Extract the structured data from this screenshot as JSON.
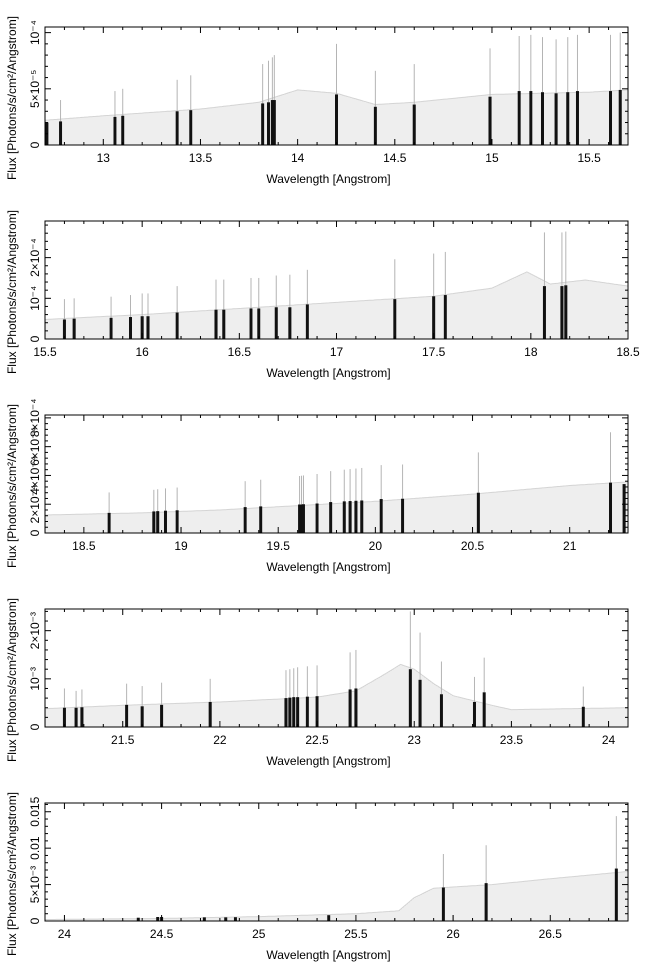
{
  "chart_data": [
    {
      "type": "bar",
      "xlabel": "Wavelength [Angstrom]",
      "ylabel": "Flux [Photons/s/cm²/Angstrom]",
      "xlim": [
        12.7,
        15.7
      ],
      "ylim": [
        0,
        0.000105
      ],
      "xticks": [
        {
          "value": 13,
          "label": "13"
        },
        {
          "value": 13.5,
          "label": "13.5"
        },
        {
          "value": 14,
          "label": "14"
        },
        {
          "value": 14.5,
          "label": "14.5"
        },
        {
          "value": 15,
          "label": "15"
        },
        {
          "value": 15.5,
          "label": "15.5"
        }
      ],
      "yticks": [
        {
          "value": 0,
          "label": "0"
        },
        {
          "value": 5e-05,
          "label": "5×10⁻⁵"
        },
        {
          "value": 0.0001,
          "label": "10⁻⁴"
        }
      ],
      "model_curve": [
        [
          12.7,
          2.2e-05
        ],
        [
          13.0,
          2.6e-05
        ],
        [
          13.5,
          3.2e-05
        ],
        [
          13.8,
          3.8e-05
        ],
        [
          14.0,
          4.9e-05
        ],
        [
          14.2,
          4.6e-05
        ],
        [
          14.4,
          3.6e-05
        ],
        [
          14.6,
          3.8e-05
        ],
        [
          15.0,
          4.5e-05
        ],
        [
          15.5,
          4.7e-05
        ],
        [
          15.7,
          4.9e-05
        ]
      ],
      "lines": [
        {
          "x": 12.71,
          "y": 2e-05,
          "err": 0.0
        },
        {
          "x": 12.78,
          "y": 2.1e-05,
          "err": 4e-05
        },
        {
          "x": 13.06,
          "y": 2.5e-05,
          "err": 4.8e-05
        },
        {
          "x": 13.1,
          "y": 2.6e-05,
          "err": 5e-05
        },
        {
          "x": 13.38,
          "y": 3e-05,
          "err": 5.8e-05
        },
        {
          "x": 13.45,
          "y": 3.1e-05,
          "err": 6.2e-05
        },
        {
          "x": 13.82,
          "y": 3.7e-05,
          "err": 7.2e-05
        },
        {
          "x": 13.85,
          "y": 3.8e-05,
          "err": 7.5e-05
        },
        {
          "x": 13.87,
          "y": 4e-05,
          "err": 7.8e-05
        },
        {
          "x": 13.88,
          "y": 4e-05,
          "err": 8e-05
        },
        {
          "x": 14.2,
          "y": 4.5e-05,
          "err": 9e-05
        },
        {
          "x": 14.4,
          "y": 3.4e-05,
          "err": 6.6e-05
        },
        {
          "x": 14.6,
          "y": 3.6e-05,
          "err": 7.2e-05
        },
        {
          "x": 14.99,
          "y": 4.3e-05,
          "err": 8.6e-05
        },
        {
          "x": 15.14,
          "y": 4.8e-05,
          "err": 9.7e-05
        },
        {
          "x": 15.2,
          "y": 4.8e-05,
          "err": 9.8e-05
        },
        {
          "x": 15.26,
          "y": 4.7e-05,
          "err": 9.6e-05
        },
        {
          "x": 15.33,
          "y": 4.6e-05,
          "err": 9.4e-05
        },
        {
          "x": 15.39,
          "y": 4.7e-05,
          "err": 9.6e-05
        },
        {
          "x": 15.44,
          "y": 4.8e-05,
          "err": 9.8e-05
        },
        {
          "x": 15.61,
          "y": 4.8e-05,
          "err": 9.8e-05
        },
        {
          "x": 15.66,
          "y": 4.9e-05,
          "err": 0.0001
        }
      ]
    },
    {
      "type": "bar",
      "xlabel": "Wavelength [Angstrom]",
      "ylabel": "Flux [Photons/s/cm²/Angstrom]",
      "xlim": [
        15.5,
        18.5
      ],
      "ylim": [
        0,
        0.00029
      ],
      "xticks": [
        {
          "value": 15.5,
          "label": "15.5"
        },
        {
          "value": 16,
          "label": "16"
        },
        {
          "value": 16.5,
          "label": "16.5"
        },
        {
          "value": 17,
          "label": "17"
        },
        {
          "value": 17.5,
          "label": "17.5"
        },
        {
          "value": 18,
          "label": "18"
        },
        {
          "value": 18.5,
          "label": "18.5"
        }
      ],
      "yticks": [
        {
          "value": 0,
          "label": "0"
        },
        {
          "value": 0.0001,
          "label": "10⁻⁴"
        },
        {
          "value": 0.0002,
          "label": "2×10⁻⁴"
        }
      ],
      "model_curve": [
        [
          15.5,
          4.8e-05
        ],
        [
          16.0,
          6e-05
        ],
        [
          16.5,
          7.5e-05
        ],
        [
          17.0,
          9e-05
        ],
        [
          17.5,
          0.000105
        ],
        [
          17.8,
          0.000125
        ],
        [
          17.98,
          0.000165
        ],
        [
          18.1,
          0.000135
        ],
        [
          18.28,
          0.000145
        ],
        [
          18.5,
          0.00013
        ]
      ],
      "lines": [
        {
          "x": 15.6,
          "y": 4.8e-05,
          "err": 9.8e-05
        },
        {
          "x": 15.65,
          "y": 5e-05,
          "err": 0.0001
        },
        {
          "x": 15.84,
          "y": 5.2e-05,
          "err": 0.000104
        },
        {
          "x": 15.94,
          "y": 5.4e-05,
          "err": 0.000108
        },
        {
          "x": 16.0,
          "y": 5.6e-05,
          "err": 0.000112
        },
        {
          "x": 16.03,
          "y": 5.6e-05,
          "err": 0.000112
        },
        {
          "x": 16.18,
          "y": 6.5e-05,
          "err": 0.00013
        },
        {
          "x": 16.38,
          "y": 7.2e-05,
          "err": 0.000146
        },
        {
          "x": 16.42,
          "y": 7.2e-05,
          "err": 0.000146
        },
        {
          "x": 16.56,
          "y": 7.5e-05,
          "err": 0.00015
        },
        {
          "x": 16.6,
          "y": 7.5e-05,
          "err": 0.00015
        },
        {
          "x": 16.69,
          "y": 7.8e-05,
          "err": 0.000156
        },
        {
          "x": 16.76,
          "y": 7.8e-05,
          "err": 0.000158
        },
        {
          "x": 16.85,
          "y": 8.5e-05,
          "err": 0.00017
        },
        {
          "x": 17.3,
          "y": 9.8e-05,
          "err": 0.000196
        },
        {
          "x": 17.5,
          "y": 0.000105,
          "err": 0.00021
        },
        {
          "x": 17.56,
          "y": 0.000108,
          "err": 0.000214
        },
        {
          "x": 18.07,
          "y": 0.00013,
          "err": 0.000262
        },
        {
          "x": 18.16,
          "y": 0.00013,
          "err": 0.000262
        },
        {
          "x": 18.18,
          "y": 0.000132,
          "err": 0.000264
        }
      ]
    },
    {
      "type": "bar",
      "xlabel": "Wavelength [Angstrom]",
      "ylabel": "Flux [Photons/s/cm²/Angstrom]",
      "xlim": [
        18.3,
        21.3
      ],
      "ylim": [
        0,
        0.00082
      ],
      "xticks": [
        {
          "value": 18.5,
          "label": "18.5"
        },
        {
          "value": 19,
          "label": "19"
        },
        {
          "value": 19.5,
          "label": "19.5"
        },
        {
          "value": 20,
          "label": "20"
        },
        {
          "value": 20.5,
          "label": "20.5"
        },
        {
          "value": 21,
          "label": "21"
        }
      ],
      "yticks": [
        {
          "value": 0,
          "label": "0"
        },
        {
          "value": 0.0002,
          "label": "2×10⁻⁴"
        },
        {
          "value": 0.0004,
          "label": "4×10⁻⁴"
        },
        {
          "value": 0.0006,
          "label": "6×10⁻⁴"
        },
        {
          "value": 0.0008,
          "label": "8×10⁻⁴"
        }
      ],
      "model_curve": [
        [
          18.3,
          0.000125
        ],
        [
          18.8,
          0.00014
        ],
        [
          19.2,
          0.00016
        ],
        [
          19.6,
          0.00019
        ],
        [
          20.0,
          0.00022
        ],
        [
          20.5,
          0.00027
        ],
        [
          21.0,
          0.00033
        ],
        [
          21.3,
          0.000355
        ]
      ],
      "lines": [
        {
          "x": 18.63,
          "y": 0.00014,
          "err": 0.000282
        },
        {
          "x": 18.86,
          "y": 0.00015,
          "err": 0.0003
        },
        {
          "x": 18.88,
          "y": 0.000152,
          "err": 0.000304
        },
        {
          "x": 18.92,
          "y": 0.000155,
          "err": 0.00031
        },
        {
          "x": 18.98,
          "y": 0.000158,
          "err": 0.000316
        },
        {
          "x": 19.33,
          "y": 0.00018,
          "err": 0.00036
        },
        {
          "x": 19.41,
          "y": 0.000185,
          "err": 0.00037
        },
        {
          "x": 19.61,
          "y": 0.000198,
          "err": 0.000396
        },
        {
          "x": 19.62,
          "y": 0.000198,
          "err": 0.000398
        },
        {
          "x": 19.63,
          "y": 0.0002,
          "err": 0.0004
        },
        {
          "x": 19.7,
          "y": 0.000205,
          "err": 0.00041
        },
        {
          "x": 19.77,
          "y": 0.000215,
          "err": 0.00043
        },
        {
          "x": 19.84,
          "y": 0.00022,
          "err": 0.00044
        },
        {
          "x": 19.87,
          "y": 0.000222,
          "err": 0.000444
        },
        {
          "x": 19.9,
          "y": 0.000224,
          "err": 0.000448
        },
        {
          "x": 19.93,
          "y": 0.000226,
          "err": 0.000452
        },
        {
          "x": 20.03,
          "y": 0.000236,
          "err": 0.000472
        },
        {
          "x": 20.14,
          "y": 0.000238,
          "err": 0.000476
        },
        {
          "x": 20.53,
          "y": 0.00028,
          "err": 0.00056
        },
        {
          "x": 21.21,
          "y": 0.00035,
          "err": 0.0007
        },
        {
          "x": 21.28,
          "y": 0.00034,
          "err": 0.0
        }
      ]
    },
    {
      "type": "bar",
      "xlabel": "Wavelength [Angstrom]",
      "ylabel": "Flux [Photons/s/cm²/Angstrom]",
      "xlim": [
        21.1,
        24.1
      ],
      "ylim": [
        0,
        0.00245
      ],
      "xticks": [
        {
          "value": 21.5,
          "label": "21.5"
        },
        {
          "value": 22,
          "label": "22"
        },
        {
          "value": 22.5,
          "label": "22.5"
        },
        {
          "value": 23,
          "label": "23"
        },
        {
          "value": 23.5,
          "label": "23.5"
        },
        {
          "value": 24,
          "label": "24"
        }
      ],
      "yticks": [
        {
          "value": 0,
          "label": "0"
        },
        {
          "value": 0.001,
          "label": "10⁻³"
        },
        {
          "value": 0.002,
          "label": "2×10⁻³"
        }
      ],
      "model_curve": [
        [
          21.1,
          0.00038
        ],
        [
          21.5,
          0.00045
        ],
        [
          22.0,
          0.00052
        ],
        [
          22.5,
          0.00062
        ],
        [
          22.7,
          0.00075
        ],
        [
          22.85,
          0.0011
        ],
        [
          22.93,
          0.0013
        ],
        [
          23.0,
          0.0012
        ],
        [
          23.1,
          0.0009
        ],
        [
          23.2,
          0.00065
        ],
        [
          23.4,
          0.00045
        ],
        [
          23.5,
          0.00036
        ],
        [
          24.1,
          0.0004
        ]
      ],
      "lines": [
        {
          "x": 21.2,
          "y": 0.0004,
          "err": 0.0008
        },
        {
          "x": 21.26,
          "y": 0.0004,
          "err": 0.00075
        },
        {
          "x": 21.29,
          "y": 0.00041,
          "err": 0.00078
        },
        {
          "x": 21.52,
          "y": 0.00046,
          "err": 0.0009
        },
        {
          "x": 21.6,
          "y": 0.00043,
          "err": 0.00085
        },
        {
          "x": 21.7,
          "y": 0.00046,
          "err": 0.00092
        },
        {
          "x": 21.95,
          "y": 0.00052,
          "err": 0.001
        },
        {
          "x": 22.34,
          "y": 0.0006,
          "err": 0.00118
        },
        {
          "x": 22.36,
          "y": 0.00061,
          "err": 0.0012
        },
        {
          "x": 22.38,
          "y": 0.00062,
          "err": 0.00122
        },
        {
          "x": 22.4,
          "y": 0.00062,
          "err": 0.00124
        },
        {
          "x": 22.45,
          "y": 0.00063,
          "err": 0.00126
        },
        {
          "x": 22.5,
          "y": 0.00064,
          "err": 0.00128
        },
        {
          "x": 22.67,
          "y": 0.00078,
          "err": 0.00155
        },
        {
          "x": 22.7,
          "y": 0.0008,
          "err": 0.0016
        },
        {
          "x": 22.98,
          "y": 0.0012,
          "err": 0.0024
        },
        {
          "x": 23.03,
          "y": 0.00098,
          "err": 0.00196
        },
        {
          "x": 23.14,
          "y": 0.00068,
          "err": 0.00136
        },
        {
          "x": 23.31,
          "y": 0.00052,
          "err": 0.00104
        },
        {
          "x": 23.36,
          "y": 0.00072,
          "err": 0.00144
        },
        {
          "x": 23.87,
          "y": 0.00042,
          "err": 0.00084
        }
      ]
    },
    {
      "type": "bar",
      "xlabel": "Wavelength [Angstrom]",
      "ylabel": "Flux [Photons/s/cm²/Angstrom]",
      "xlim": [
        23.9,
        26.9
      ],
      "ylim": [
        0,
        0.0162
      ],
      "xticks": [
        {
          "value": 24,
          "label": "24"
        },
        {
          "value": 24.5,
          "label": "24.5"
        },
        {
          "value": 25,
          "label": "25"
        },
        {
          "value": 25.5,
          "label": "25.5"
        },
        {
          "value": 26,
          "label": "26"
        },
        {
          "value": 26.5,
          "label": "26.5"
        }
      ],
      "yticks": [
        {
          "value": 0,
          "label": "0"
        },
        {
          "value": 0.005,
          "label": "5×10⁻³"
        },
        {
          "value": 0.01,
          "label": "0.01"
        },
        {
          "value": 0.015,
          "label": "0.015"
        }
      ],
      "model_curve": [
        [
          23.9,
          0.0002
        ],
        [
          24.5,
          0.00035
        ],
        [
          25.0,
          0.0006
        ],
        [
          25.5,
          0.001
        ],
        [
          25.72,
          0.0014
        ],
        [
          25.8,
          0.0032
        ],
        [
          25.9,
          0.0045
        ],
        [
          26.2,
          0.005
        ],
        [
          26.5,
          0.0058
        ],
        [
          26.9,
          0.0068
        ]
      ],
      "lines": [
        {
          "x": 24.38,
          "y": 0.00045,
          "err": 0.0
        },
        {
          "x": 24.48,
          "y": 0.00055,
          "err": 0.0
        },
        {
          "x": 24.5,
          "y": 0.00055,
          "err": 0.0
        },
        {
          "x": 24.72,
          "y": 0.0005,
          "err": 0.0
        },
        {
          "x": 24.83,
          "y": 0.0005,
          "err": 0.0
        },
        {
          "x": 24.88,
          "y": 0.00052,
          "err": 0.0
        },
        {
          "x": 25.36,
          "y": 0.0008,
          "err": 0.0
        },
        {
          "x": 25.95,
          "y": 0.0046,
          "err": 0.0092
        },
        {
          "x": 26.17,
          "y": 0.0052,
          "err": 0.0104
        },
        {
          "x": 26.84,
          "y": 0.0072,
          "err": 0.0144
        }
      ]
    }
  ]
}
